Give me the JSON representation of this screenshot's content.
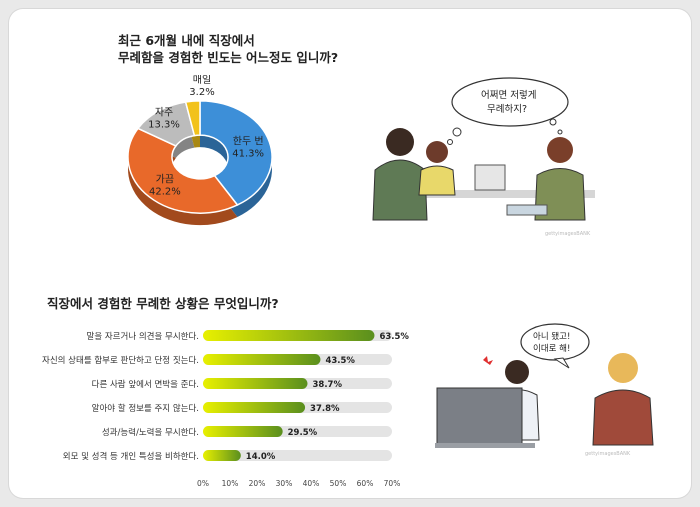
{
  "survey1": {
    "title_line1": "최근 6개월 내에 직장에서",
    "title_line2": "무례함을 경험한 빈도는 어느정도 입니까?"
  },
  "survey2": {
    "title": "직장에서 경험한 무례한 상황은 무엇입니까?"
  },
  "illustration1": {
    "bubble_line1": "어쩌면 저렇게",
    "bubble_line2": "무례하지?",
    "watermark": "gettyimagesBANK"
  },
  "illustration2": {
    "bubble_line1": "아니 됐고!",
    "bubble_line2": "이대로 해!",
    "watermark": "gettyimagesBANK"
  },
  "chart_data": [
    {
      "type": "pie",
      "variant": "donut",
      "slices": [
        {
          "label": "한두 번",
          "value": 41.3,
          "value_label": "41.3%",
          "color": "#3d8fd8"
        },
        {
          "label": "가끔",
          "value": 42.2,
          "value_label": "42.2%",
          "color": "#e8692a"
        },
        {
          "label": "자주",
          "value": 13.3,
          "value_label": "13.3%",
          "color": "#bcbcbc"
        },
        {
          "label": "매일",
          "value": 3.2,
          "value_label": "3.2%",
          "color": "#f2c21b"
        }
      ]
    },
    {
      "type": "bar",
      "orientation": "horizontal",
      "categories": [
        "말을 자르거나 의견을 무시한다.",
        "자신의 상태를 함부로 판단하고 단정 짓는다.",
        "다른 사람 앞에서 면박을 준다.",
        "알아야 할 정보를 주지 않는다.",
        "성과/능력/노력을 무시한다.",
        "외모 및 성격 등 개인 특성을 비하한다."
      ],
      "values": [
        63.5,
        43.5,
        38.7,
        37.8,
        29.5,
        14.0
      ],
      "value_labels": [
        "63.5%",
        "43.5%",
        "38.7%",
        "37.8%",
        "29.5%",
        "14.0%"
      ],
      "xlim": [
        0,
        70
      ],
      "ticks": [
        "0%",
        "10%",
        "20%",
        "30%",
        "40%",
        "50%",
        "60%",
        "70%"
      ],
      "bar_gradient": [
        "#e8f000",
        "#5a8f1e"
      ],
      "track_color": "#e4e4e4"
    }
  ]
}
